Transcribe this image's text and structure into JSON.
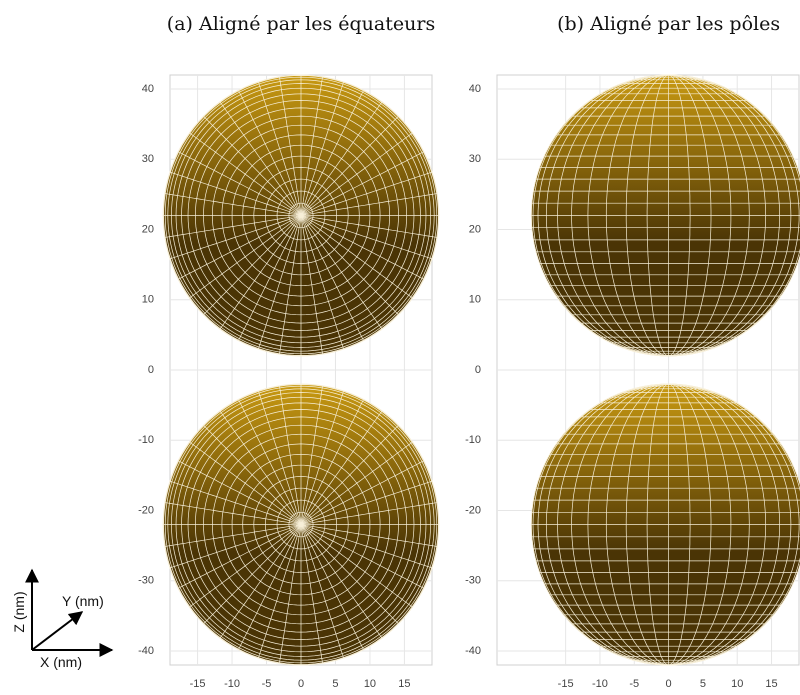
{
  "chart_data": [
    {
      "type": "sphere",
      "title": "(a) Aligné par les équateurs",
      "elevation": 90,
      "spheres": [
        {
          "x": 0,
          "z": 22,
          "radius": 20
        },
        {
          "x": 0,
          "z": -22,
          "radius": 20
        }
      ],
      "color": "#c99a12",
      "shade": "#4a3405",
      "mesh_color": "#f7efd8",
      "xlim": [
        -19,
        19
      ],
      "ylim": [
        -42,
        42
      ],
      "xticks": [
        -15,
        -10,
        -5,
        0,
        5,
        10,
        15
      ],
      "yticks": [
        -40,
        -30,
        -20,
        -10,
        0,
        10,
        20,
        30,
        40
      ],
      "grid": true
    },
    {
      "type": "sphere",
      "title": "(b) Aligné par les pôles",
      "elevation": 0,
      "spheres": [
        {
          "x": 0,
          "z": 22,
          "radius": 20
        },
        {
          "x": 0,
          "z": -22,
          "radius": 20
        }
      ],
      "color": "#c99a12",
      "shade": "#4a3405",
      "mesh_color": "#f7efd8",
      "xlim": [
        -25,
        19
      ],
      "ylim": [
        -42,
        42
      ],
      "xticks": [
        -15,
        -10,
        -5,
        0,
        5,
        10,
        15
      ],
      "yticks": [
        -40,
        -30,
        -20,
        -10,
        0,
        10,
        20,
        30,
        40
      ],
      "grid": true
    }
  ],
  "axes_indicator": {
    "z": "Z (nm)",
    "y": "Y (nm)",
    "x": "X (nm)"
  }
}
